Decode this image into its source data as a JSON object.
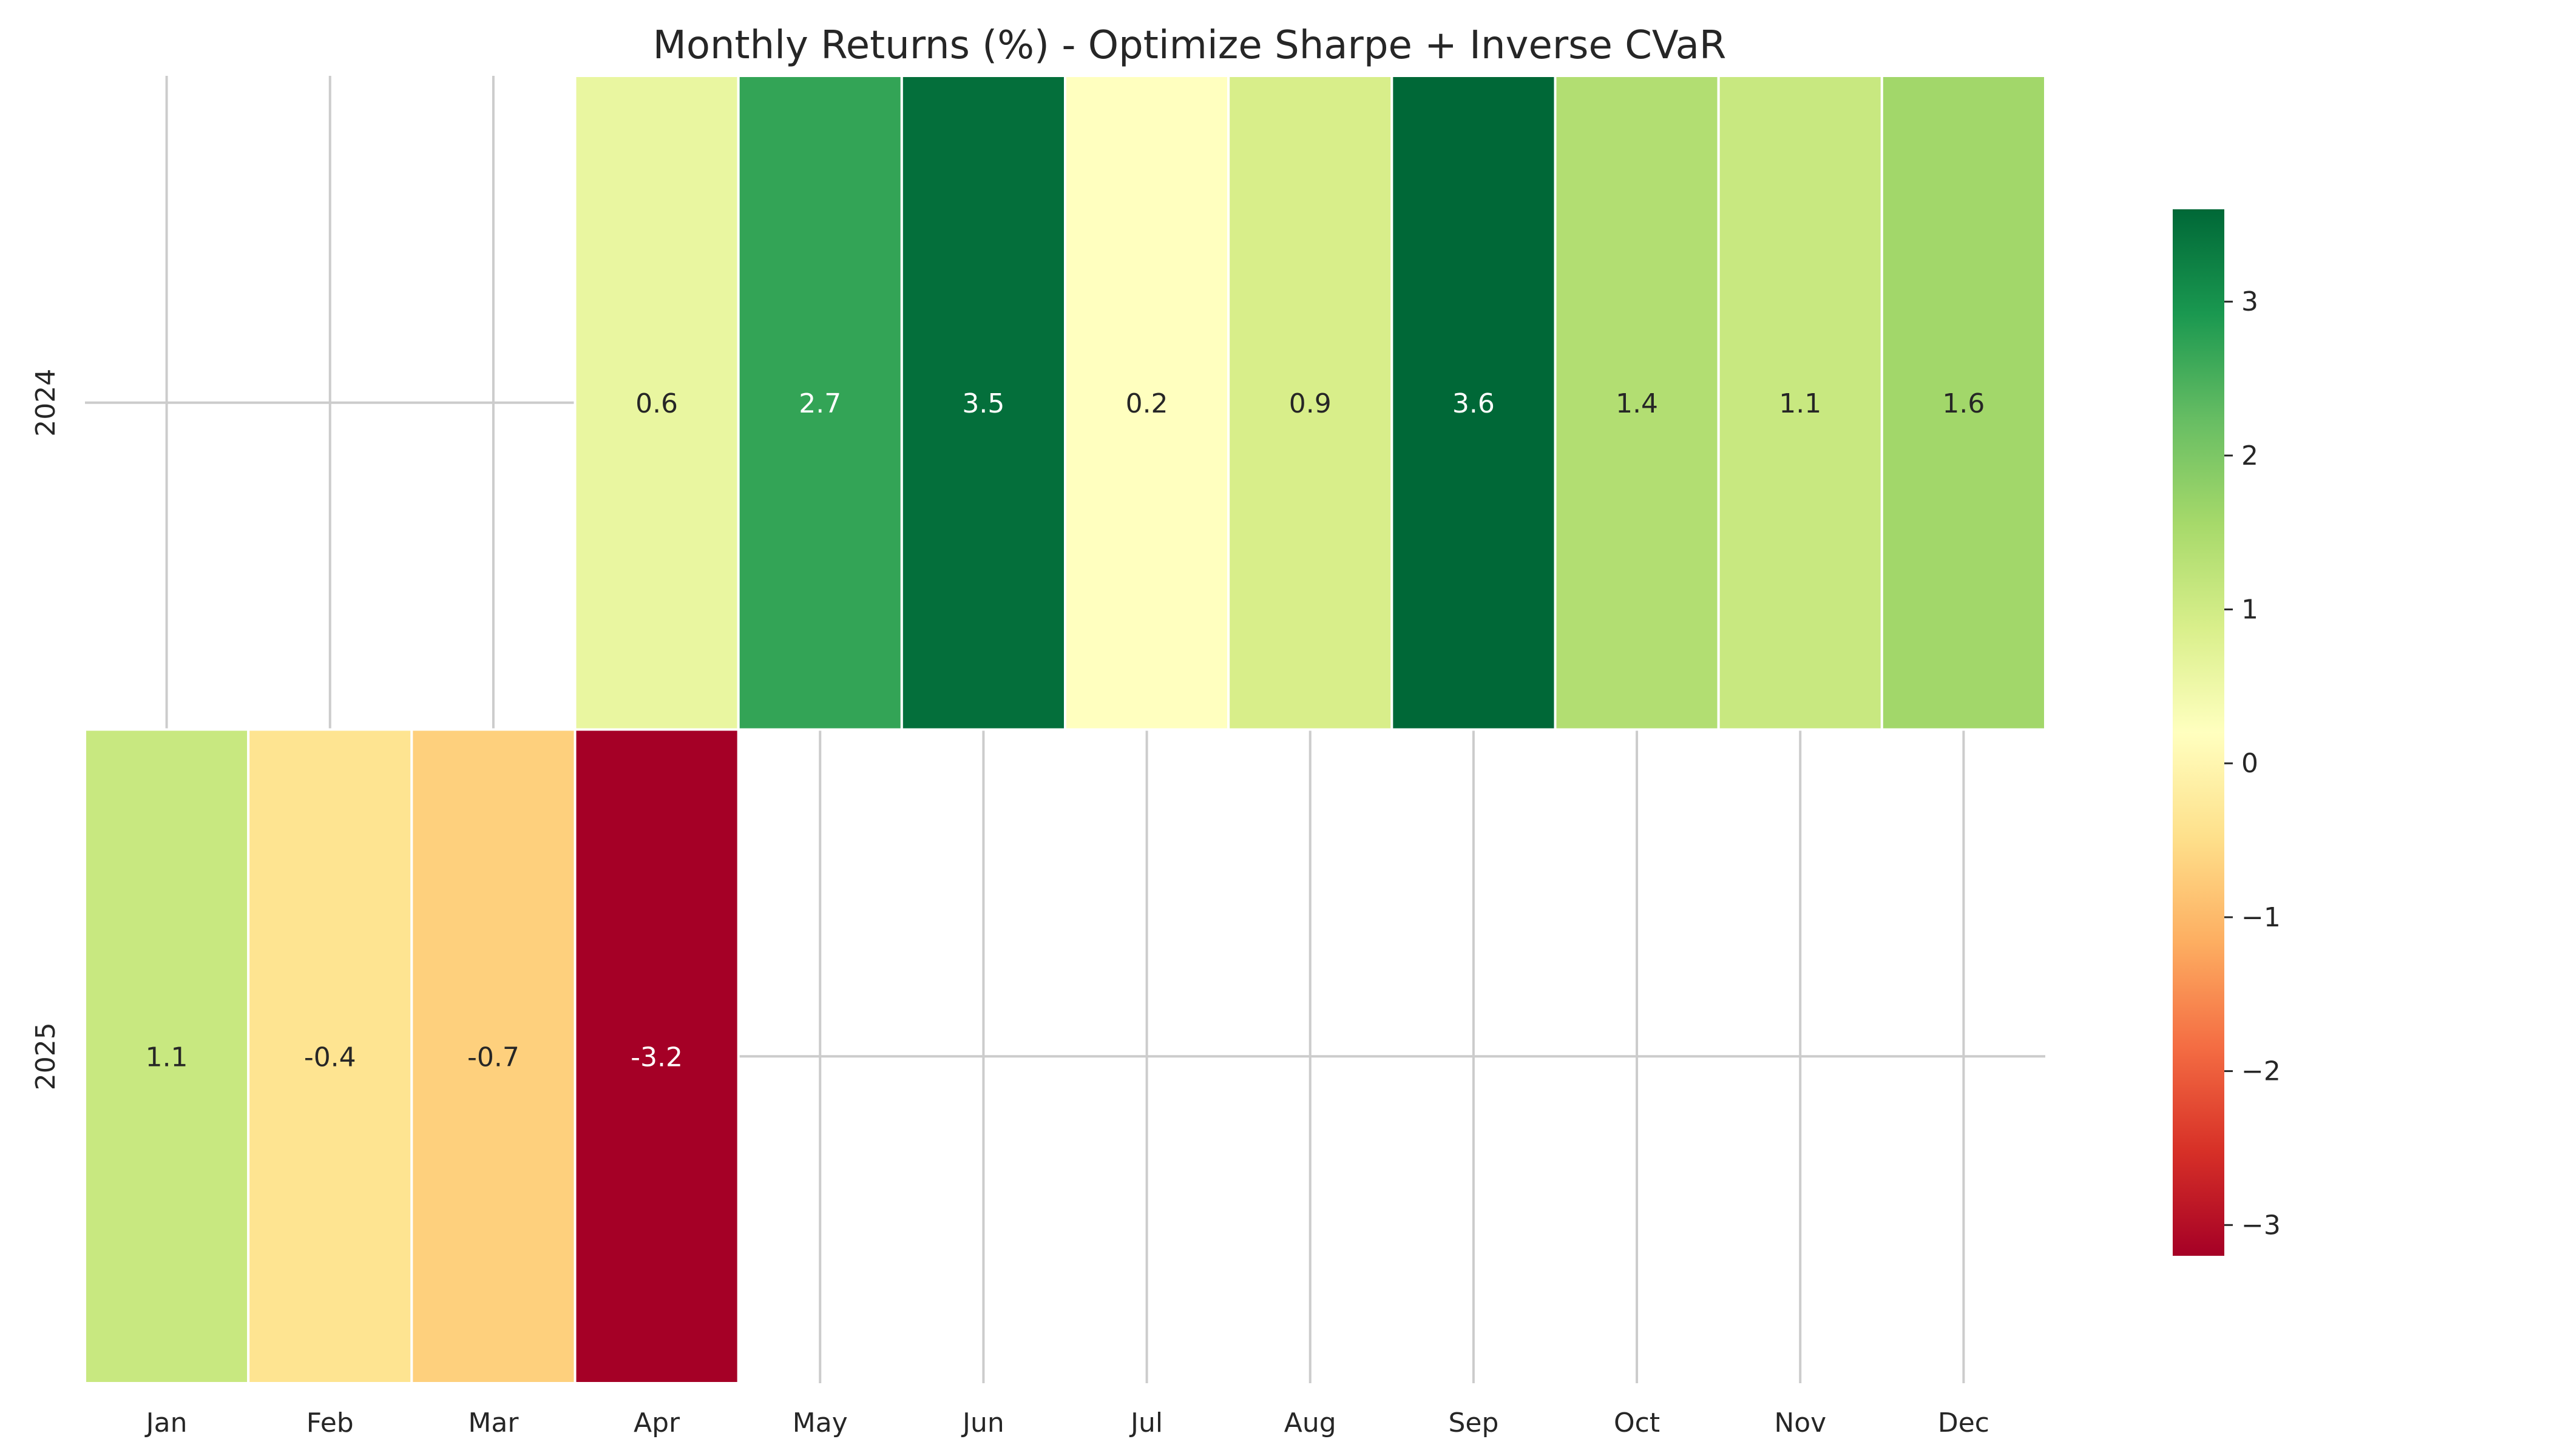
{
  "chart_data": {
    "type": "heatmap",
    "title": "Monthly Returns (%) - Optimize Sharpe + Inverse CVaR",
    "xlabel": "",
    "ylabel": "",
    "categories": [
      "Jan",
      "Feb",
      "Mar",
      "Apr",
      "May",
      "Jun",
      "Jul",
      "Aug",
      "Sep",
      "Oct",
      "Nov",
      "Dec"
    ],
    "rows": [
      "2024",
      "2025"
    ],
    "values": [
      [
        null,
        null,
        null,
        0.6,
        2.7,
        3.5,
        0.2,
        0.9,
        3.6,
        1.4,
        1.1,
        1.6
      ],
      [
        1.1,
        -0.4,
        -0.7,
        -3.2,
        null,
        null,
        null,
        null,
        null,
        null,
        null,
        null
      ]
    ],
    "labels": [
      [
        "",
        "",
        "",
        "0.6",
        "2.7",
        "3.5",
        "0.2",
        "0.9",
        "3.6",
        "1.4",
        "1.1",
        "1.6"
      ],
      [
        "1.1",
        "-0.4",
        "-0.7",
        "-3.2",
        "",
        "",
        "",
        "",
        "",
        "",
        "",
        ""
      ]
    ],
    "colormap": "RdYlGn",
    "color_range": [
      -3.2,
      3.6
    ],
    "grid": true,
    "colorbar": {
      "position": "right",
      "ticks": [
        3,
        2,
        1,
        0,
        -1,
        -2,
        -3
      ],
      "tick_labels": [
        "3",
        "2",
        "1",
        "0",
        "−1",
        "−2",
        "−3"
      ]
    },
    "colors": {
      "grid": "#cccccc",
      "text_dark": "#262626",
      "text_light": "#ffffff",
      "cell_border": "#ffffff"
    }
  }
}
